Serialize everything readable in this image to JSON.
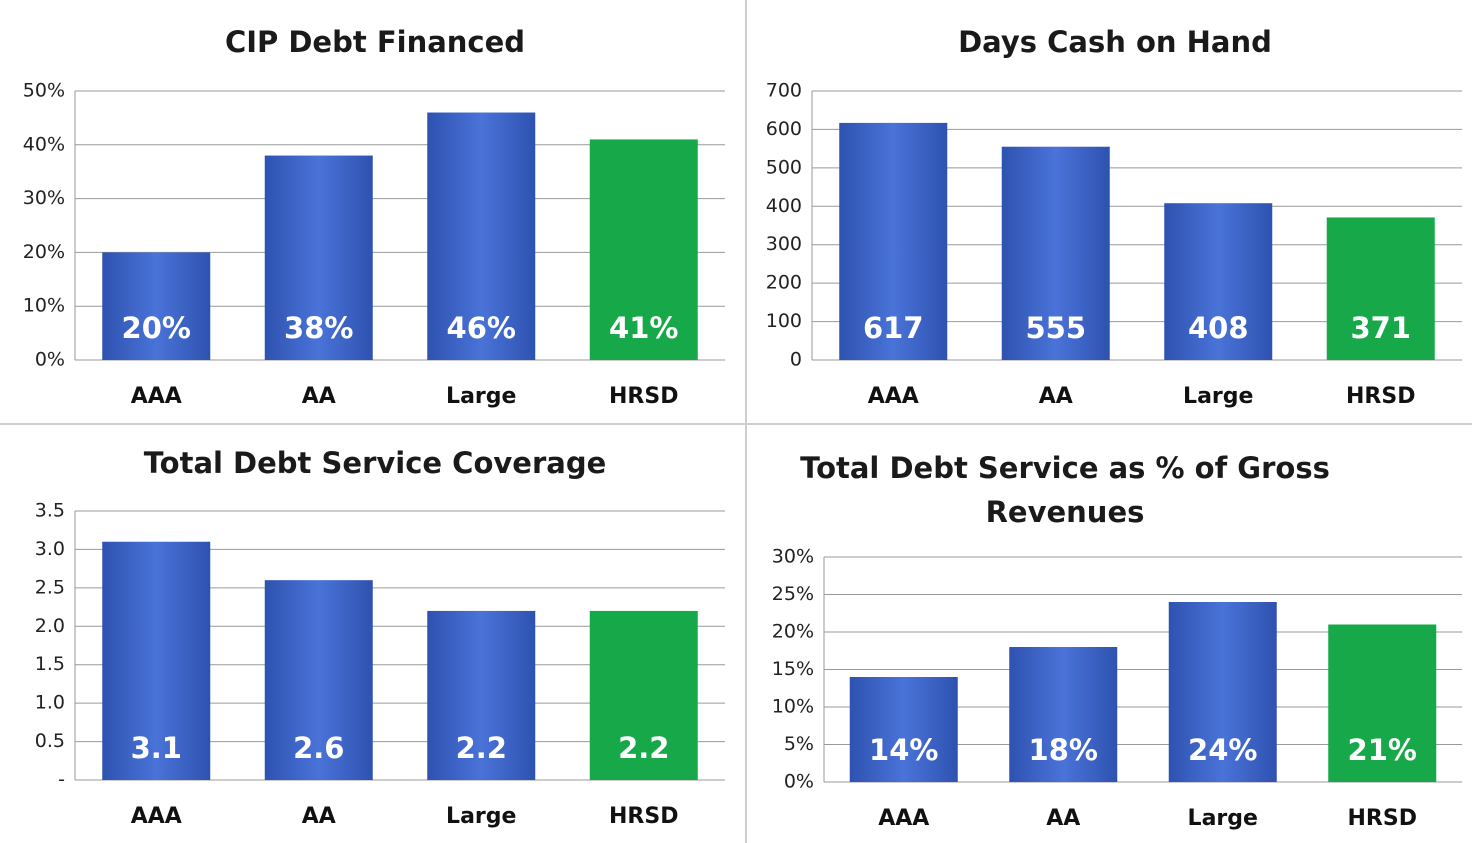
{
  "chart_data": [
    {
      "type": "bar",
      "title": "CIP Debt Financed",
      "categories": [
        "AAA",
        "AA",
        "Large",
        "HRSD"
      ],
      "values": [
        20,
        38,
        46,
        41
      ],
      "value_labels": [
        "20%",
        "38%",
        "46%",
        "41%"
      ],
      "colors": [
        "#3a61c6",
        "#3a61c6",
        "#3a61c6",
        "#17a84a"
      ],
      "ylim": [
        0,
        50
      ],
      "yticks": [
        {
          "value": 0,
          "label": "0%"
        },
        {
          "value": 10,
          "label": "10%"
        },
        {
          "value": 20,
          "label": "20%"
        },
        {
          "value": 30,
          "label": "30%"
        },
        {
          "value": 40,
          "label": "40%"
        },
        {
          "value": 50,
          "label": "50%"
        }
      ],
      "grid": true
    },
    {
      "type": "bar",
      "title": "Days Cash on Hand",
      "categories": [
        "AAA",
        "AA",
        "Large",
        "HRSD"
      ],
      "values": [
        617,
        555,
        408,
        371
      ],
      "colors": [
        "#3a61c6",
        "#3a61c6",
        "#3a61c6",
        "#17a84a"
      ],
      "ylim": [
        0,
        700
      ],
      "yticks": [
        0,
        100,
        200,
        300,
        400,
        500,
        600,
        700
      ],
      "grid": true
    },
    {
      "type": "bar",
      "title": "Total Debt Service Coverage",
      "categories": [
        "AAA",
        "AA",
        "Large",
        "HRSD"
      ],
      "values": [
        3.1,
        2.6,
        2.2,
        2.2
      ],
      "colors": [
        "#3a61c6",
        "#3a61c6",
        "#3a61c6",
        "#17a84a"
      ],
      "ylim": [
        0,
        3.5
      ],
      "yticks": [
        {
          "value": 0,
          "label": "-"
        },
        0.5,
        {
          "value": 1,
          "label": "1.0"
        },
        1.5,
        {
          "value": 2,
          "label": "2.0"
        },
        2.5,
        {
          "value": 3,
          "label": "3.0"
        },
        3.5
      ],
      "grid": true
    },
    {
      "type": "bar",
      "title": "Total Debt Service as % of Gross Revenues",
      "categories": [
        "AAA",
        "AA",
        "Large",
        "HRSD"
      ],
      "values": [
        14,
        18,
        24,
        21
      ],
      "value_labels": [
        "14%",
        "18%",
        "24%",
        "21%"
      ],
      "colors": [
        "#3a61c6",
        "#3a61c6",
        "#3a61c6",
        "#17a84a"
      ],
      "ylim": [
        0,
        30
      ],
      "yticks": [
        {
          "value": 0,
          "label": "0%"
        },
        {
          "value": 5,
          "label": "5%"
        },
        {
          "value": 10,
          "label": "10%"
        },
        {
          "value": 15,
          "label": "15%"
        },
        {
          "value": 20,
          "label": "20%"
        },
        {
          "value": 25,
          "label": "25%"
        },
        {
          "value": 30,
          "label": "30%"
        }
      ],
      "grid": true
    }
  ]
}
